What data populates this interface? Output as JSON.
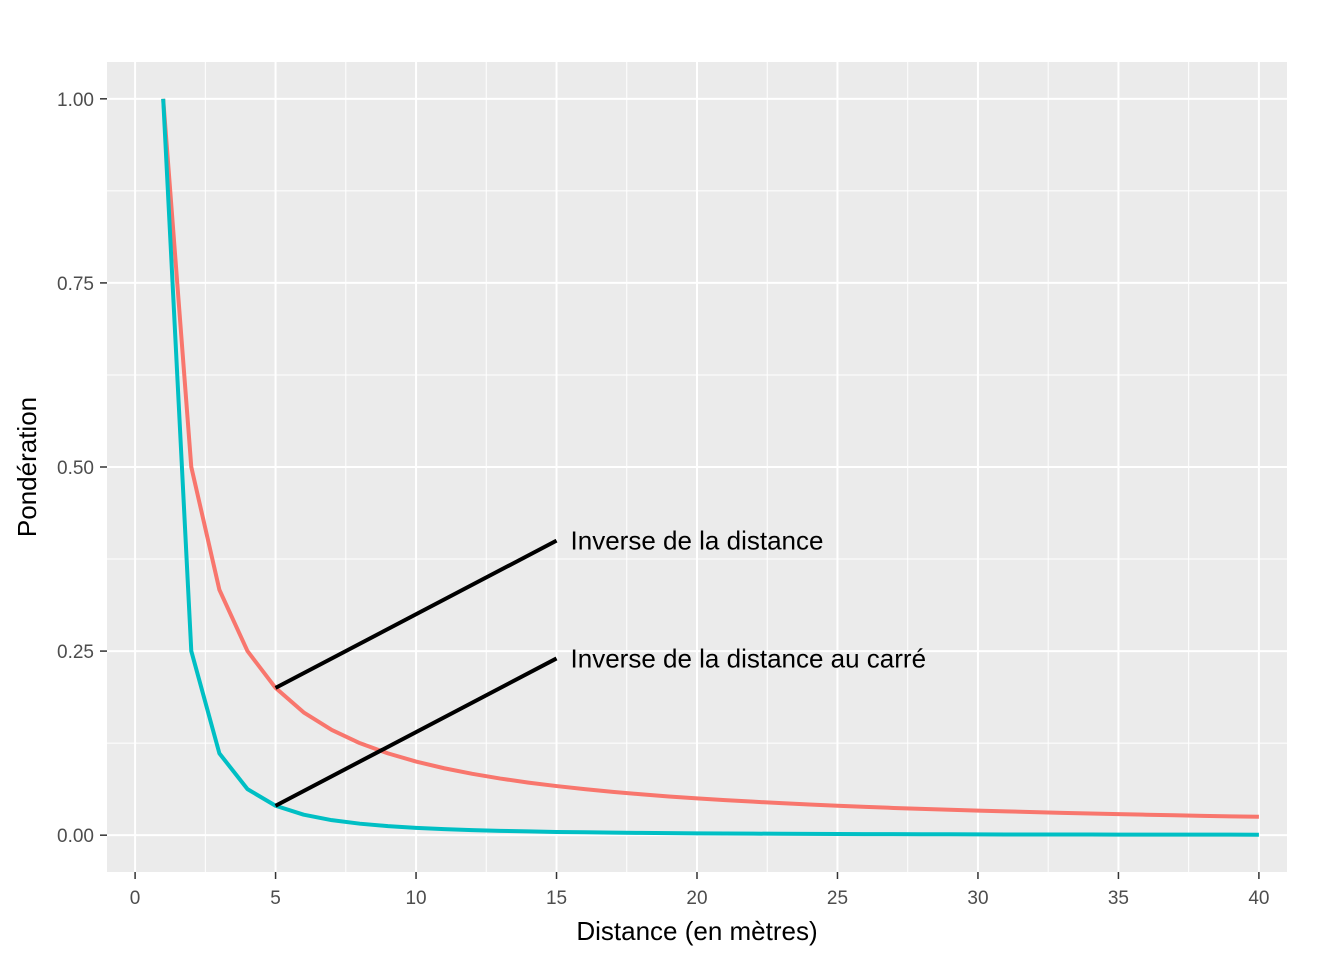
{
  "chart_data": {
    "type": "line",
    "title": "",
    "xlabel": "Distance (en mètres)",
    "ylabel": "Pondération",
    "xlim": [
      -1,
      41
    ],
    "ylim": [
      -0.05,
      1.05
    ],
    "x_ticks": [
      0,
      5,
      10,
      15,
      20,
      25,
      30,
      35,
      40
    ],
    "x_tick_labels": [
      "0",
      "5",
      "10",
      "15",
      "20",
      "25",
      "30",
      "35",
      "40"
    ],
    "y_ticks": [
      0,
      0.25,
      0.5,
      0.75,
      1
    ],
    "y_tick_labels": [
      "0.00",
      "0.25",
      "0.50",
      "0.75",
      "1.00"
    ],
    "grid": true,
    "legend": "none",
    "background": "#ebebeb",
    "x": [
      1,
      2,
      3,
      4,
      5,
      6,
      7,
      8,
      9,
      10,
      11,
      12,
      13,
      14,
      15,
      16,
      17,
      18,
      19,
      20,
      21,
      22,
      23,
      24,
      25,
      26,
      27,
      28,
      29,
      30,
      31,
      32,
      33,
      34,
      35,
      36,
      37,
      38,
      39,
      40
    ],
    "series": [
      {
        "color": "#f8766d",
        "values": [
          1,
          0.5,
          0.3333,
          0.25,
          0.2,
          0.1667,
          0.1429,
          0.125,
          0.1111,
          0.1,
          0.0909,
          0.0833,
          0.0769,
          0.0714,
          0.0667,
          0.0625,
          0.0588,
          0.0556,
          0.0526,
          0.05,
          0.0476,
          0.0455,
          0.0435,
          0.0417,
          0.04,
          0.0385,
          0.037,
          0.0357,
          0.0345,
          0.0333,
          0.0323,
          0.0313,
          0.0303,
          0.0294,
          0.0286,
          0.0278,
          0.027,
          0.0263,
          0.0256,
          0.025
        ]
      },
      {
        "color": "#00bfc4",
        "values": [
          1,
          0.25,
          0.1111,
          0.0625,
          0.04,
          0.0278,
          0.0204,
          0.0156,
          0.0123,
          0.01,
          0.0083,
          0.0069,
          0.0059,
          0.0051,
          0.0044,
          0.0039,
          0.0035,
          0.0031,
          0.0028,
          0.0025,
          0.0023,
          0.0021,
          0.0019,
          0.0017,
          0.0016,
          0.0015,
          0.0014,
          0.0013,
          0.0012,
          0.0011,
          0.001,
          0.001,
          0.0009,
          0.0009,
          0.0008,
          0.0008,
          0.0007,
          0.0007,
          0.0007,
          0.0006
        ]
      }
    ],
    "annotations": [
      {
        "text": "Inverse de la distance",
        "from": [
          5,
          0.2
        ],
        "to": [
          15,
          0.4
        ]
      },
      {
        "text": "Inverse de la distance au carré",
        "from": [
          5,
          0.04
        ],
        "to": [
          15,
          0.24
        ]
      }
    ]
  }
}
